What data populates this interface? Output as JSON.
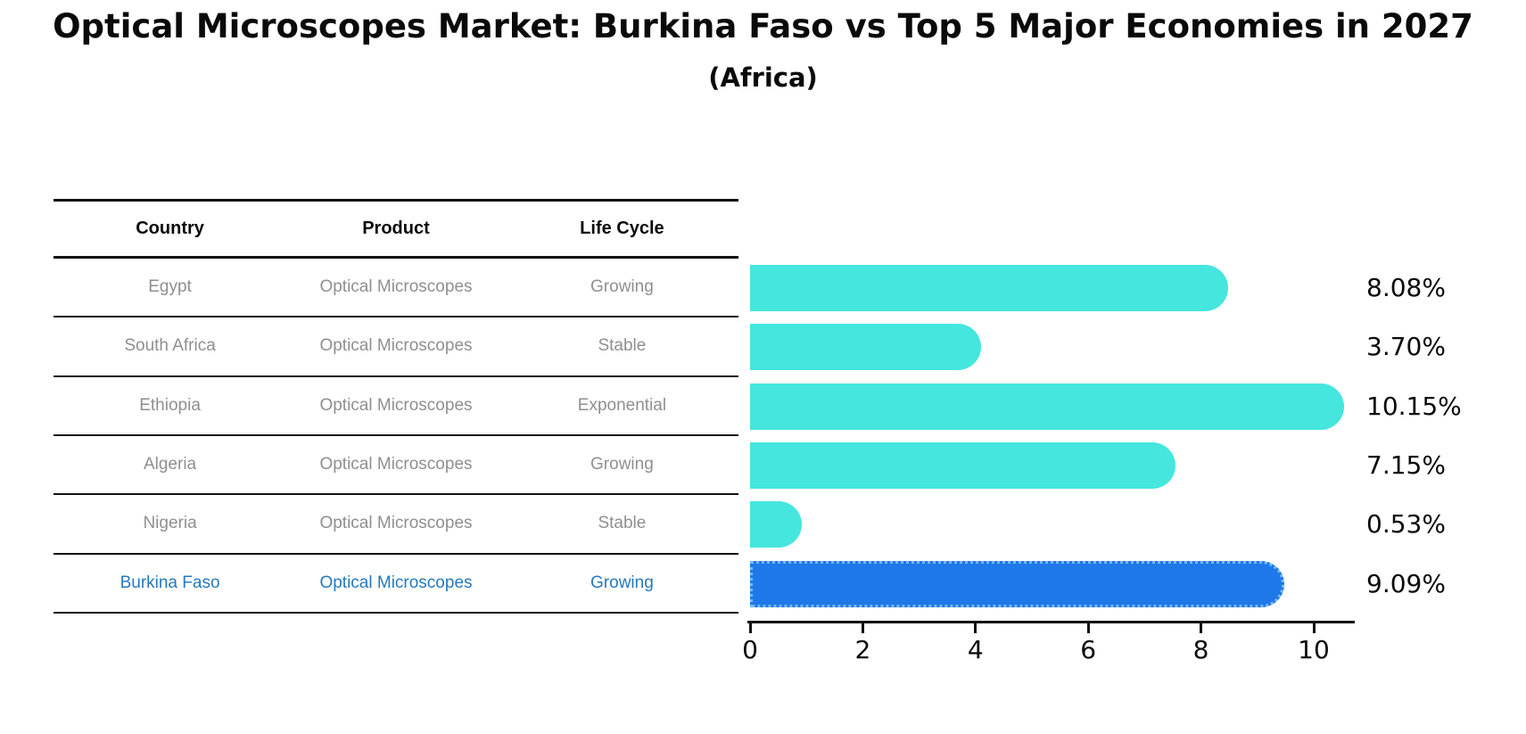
{
  "title": "Optical Microscopes Market: Burkina Faso vs Top 5 Major Economies in 2027",
  "subtitle": "(Africa)",
  "table": {
    "headers": [
      "Country",
      "Product",
      "Life Cycle"
    ],
    "rows": [
      {
        "country": "Egypt",
        "product": "Optical Microscopes",
        "life_cycle": "Growing"
      },
      {
        "country": "South Africa",
        "product": "Optical Microscopes",
        "life_cycle": "Stable"
      },
      {
        "country": "Ethiopia",
        "product": "Optical Microscopes",
        "life_cycle": "Exponential"
      },
      {
        "country": "Algeria",
        "product": "Optical Microscopes",
        "life_cycle": "Growing"
      },
      {
        "country": "Nigeria",
        "product": "Optical Microscopes",
        "life_cycle": "Stable"
      },
      {
        "country": "Burkina Faso",
        "product": "Optical Microscopes",
        "life_cycle": "Growing"
      }
    ],
    "highlight_row_index": 5
  },
  "chart_data": {
    "type": "bar",
    "orientation": "horizontal",
    "categories": [
      "Egypt",
      "South Africa",
      "Ethiopia",
      "Algeria",
      "Nigeria",
      "Burkina Faso"
    ],
    "values": [
      8.08,
      3.7,
      10.15,
      7.15,
      0.53,
      9.09
    ],
    "value_labels": [
      "8.08%",
      "3.70%",
      "10.15%",
      "7.15%",
      "0.53%",
      "9.09%"
    ],
    "xticks": [
      "0",
      "2",
      "4",
      "6",
      "8",
      "10"
    ],
    "xlim": [
      0,
      10.7
    ],
    "grid": false,
    "highlight_index": 5,
    "bar_color": "#45e6de",
    "highlight_bar_color": "#1e78e8",
    "highlight_edge_color": "#79b9f5",
    "body_text_color": "#8f8f8f",
    "highlight_text_color": "#2679bc",
    "axis_color": "#111111"
  }
}
